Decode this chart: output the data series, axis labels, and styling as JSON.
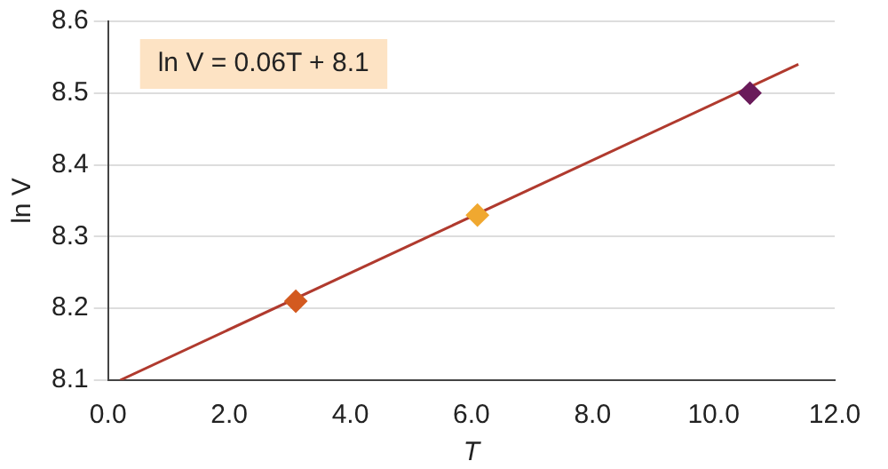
{
  "chart_data": {
    "type": "scatter",
    "xlabel": "T",
    "ylabel": "ln V",
    "xlim": [
      0,
      12
    ],
    "ylim": [
      8.1,
      8.6
    ],
    "xticks": [
      {
        "value": 0,
        "label": "0.0"
      },
      {
        "value": 2,
        "label": "2.0"
      },
      {
        "value": 4,
        "label": "4.0"
      },
      {
        "value": 6,
        "label": "6.0"
      },
      {
        "value": 8,
        "label": "8.0"
      },
      {
        "value": 10,
        "label": "10.0"
      },
      {
        "value": 12,
        "label": "12.0"
      }
    ],
    "yticks": [
      8.1,
      8.2,
      8.3,
      8.4,
      8.5,
      8.6
    ],
    "grid": "y",
    "legend": false,
    "marker": "diamond",
    "annotations": [
      "ln V = 0.06T + 8.1"
    ],
    "series": [
      {
        "type": "line",
        "color": "#b03a2e",
        "x": [
          0.2,
          11.4
        ],
        "values": [
          8.1,
          8.54
        ],
        "marker": "none"
      },
      {
        "x": [
          3.1,
          6.1,
          10.6
        ],
        "values": [
          8.21,
          8.33,
          8.5
        ],
        "colors": [
          "#d35a20",
          "#f0a830",
          "#6a1b5a"
        ]
      }
    ]
  }
}
